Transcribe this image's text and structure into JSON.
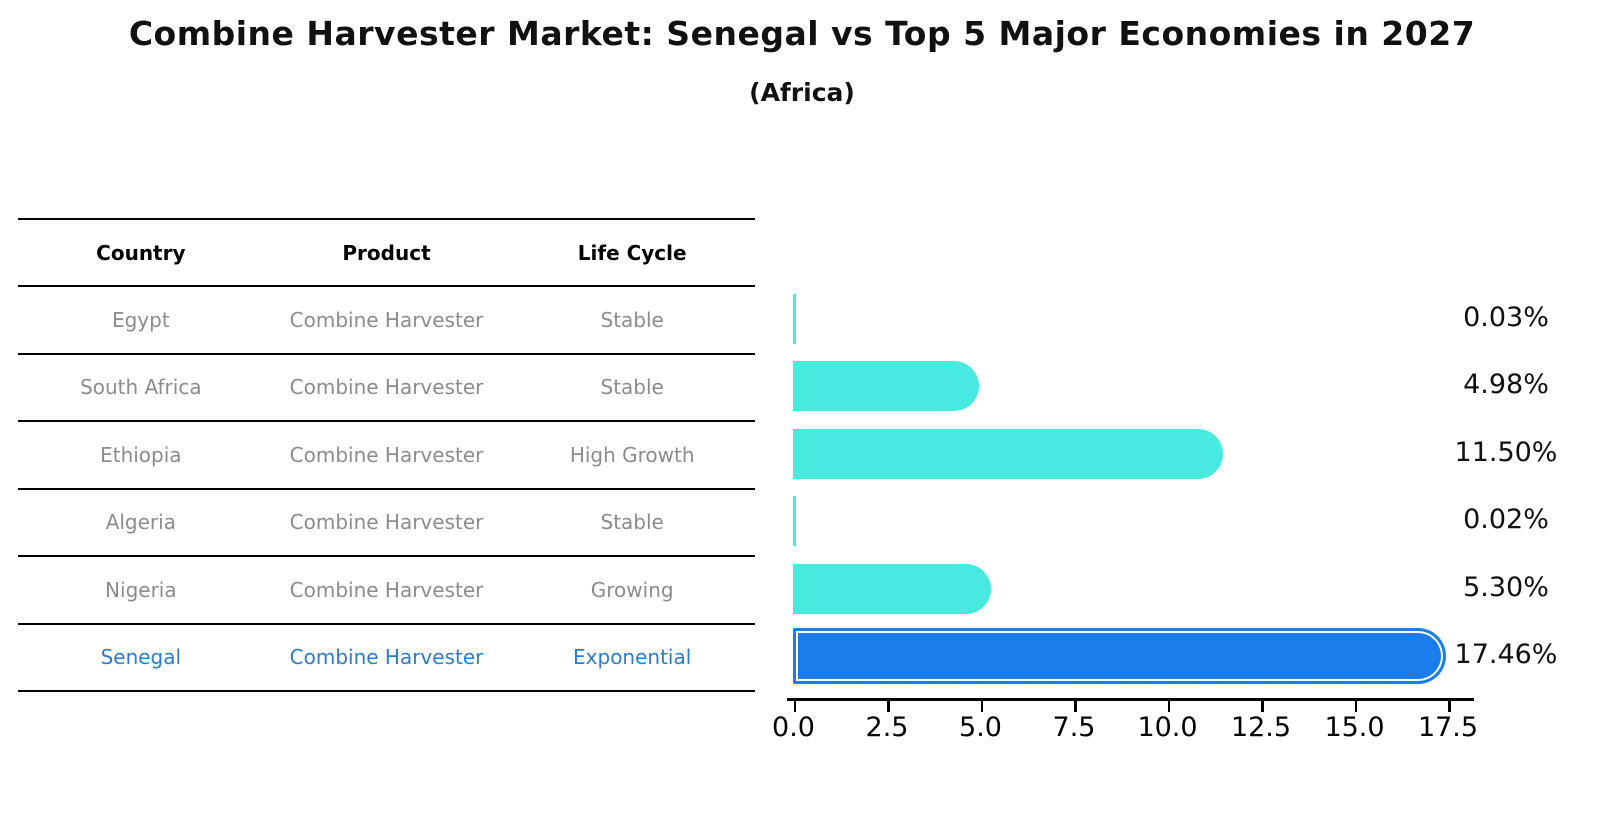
{
  "title": "Combine Harvester Market: Senegal vs Top 5 Major Economies in 2027",
  "subtitle": "(Africa)",
  "table": {
    "headers": [
      "Country",
      "Product",
      "Life Cycle"
    ],
    "rows": [
      {
        "country": "Egypt",
        "product": "Combine Harvester",
        "life_cycle": "Stable",
        "highlight": false
      },
      {
        "country": "South Africa",
        "product": "Combine Harvester",
        "life_cycle": "Stable",
        "highlight": false
      },
      {
        "country": "Ethiopia",
        "product": "Combine Harvester",
        "life_cycle": "High Growth",
        "highlight": false
      },
      {
        "country": "Algeria",
        "product": "Combine Harvester",
        "life_cycle": "Stable",
        "highlight": false
      },
      {
        "country": "Nigeria",
        "product": "Combine Harvester",
        "life_cycle": "Growing",
        "highlight": false
      },
      {
        "country": "Senegal",
        "product": "Combine Harvester",
        "life_cycle": "Exponential",
        "highlight": true
      }
    ]
  },
  "chart_data": {
    "type": "bar",
    "orientation": "horizontal",
    "categories": [
      "Egypt",
      "South Africa",
      "Ethiopia",
      "Algeria",
      "Nigeria",
      "Senegal"
    ],
    "values": [
      0.03,
      4.98,
      11.5,
      0.02,
      5.3,
      17.46
    ],
    "value_labels": [
      "0.03%",
      "4.98%",
      "11.50%",
      "0.02%",
      "5.30%",
      "17.46%"
    ],
    "x_ticks": [
      0.0,
      2.5,
      5.0,
      7.5,
      10.0,
      12.5,
      15.0,
      17.5
    ],
    "x_tick_labels": [
      "0.0",
      "2.5",
      "5.0",
      "7.5",
      "10.0",
      "12.5",
      "15.0",
      "17.5"
    ],
    "xlim": [
      0,
      18.2
    ],
    "grid": false,
    "legend": "none",
    "highlight_index": 5,
    "bar_color": "#48eae0",
    "highlight_color": "#1a7deb"
  },
  "colors": {
    "bar_default": "#48eae0",
    "bar_highlight": "#1a7deb",
    "highlight_text": "#2e7cc6",
    "muted_text": "#8c8c8c",
    "title_text": "#111111"
  }
}
